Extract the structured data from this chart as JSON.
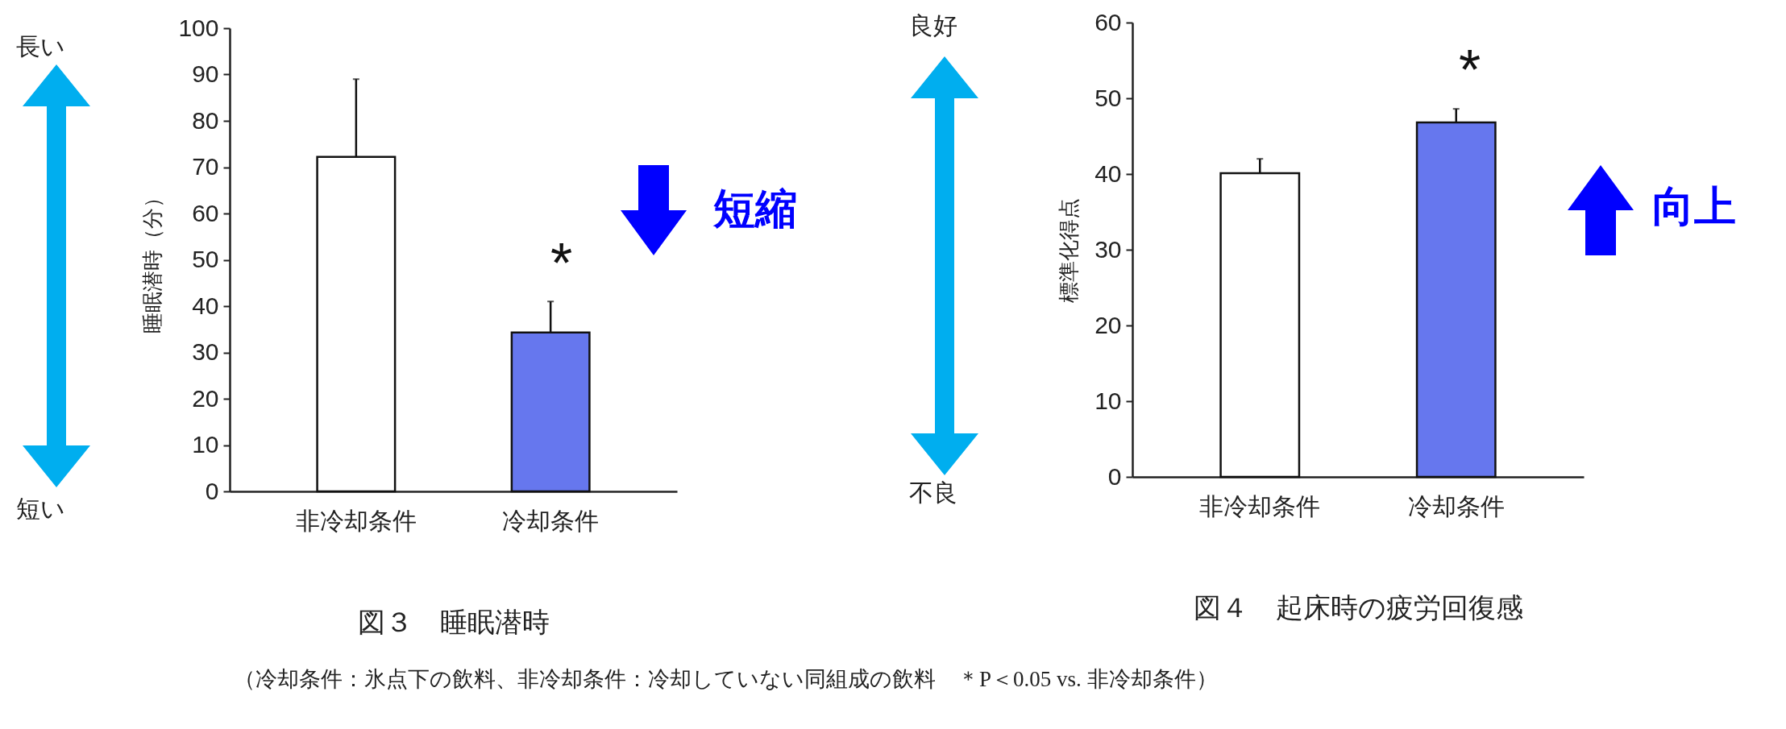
{
  "chart_data": [
    {
      "type": "bar",
      "title": "図３　睡眠潜時",
      "ylabel": "睡眠潜時（分）",
      "categories": [
        "非冷却条件",
        "冷却条件"
      ],
      "values": [
        72.2,
        34.3
      ],
      "colors": [
        "#ffffff",
        "#6677ee"
      ],
      "errors": [
        [
          72.2,
          89
        ],
        [
          34.3,
          41
        ]
      ],
      "ylim": [
        0,
        100
      ],
      "yticks": [
        0,
        10,
        20,
        30,
        40,
        50,
        60,
        70,
        80,
        90,
        100
      ],
      "grid": false,
      "annotations": [
        "長い",
        "短い",
        "短縮",
        "*",
        "（冷却条件：氷点下の飲料、非冷却条件：冷却していない同組成の飲料　＊P＜0.05 vs. 非冷却条件）"
      ]
    },
    {
      "type": "bar",
      "title": "図４　起床時の疲労回復感",
      "ylabel": "標準化得点",
      "categories": [
        "非冷却条件",
        "冷却条件"
      ],
      "values": [
        40.1,
        46.8
      ],
      "colors": [
        "#ffffff",
        "#6677ee"
      ],
      "errors": [
        [
          40.1,
          42
        ],
        [
          46.8,
          48.6
        ]
      ],
      "ylim": [
        0,
        60
      ],
      "yticks": [
        0,
        10,
        20,
        30,
        40,
        50,
        60
      ],
      "grid": false,
      "annotations": [
        "良好",
        "不良",
        "向上",
        "*"
      ]
    }
  ]
}
